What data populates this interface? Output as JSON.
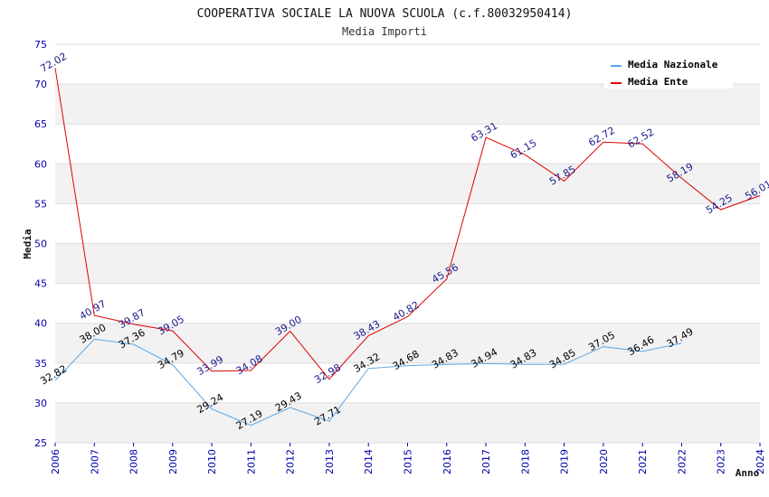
{
  "chart_data": {
    "type": "line",
    "title": "COOPERATIVA SOCIALE LA NUOVA SCUOLA (c.f.80032950414)",
    "subtitle": "Media Importi",
    "xlabel": "Anno",
    "ylabel": "Media",
    "ylim": [
      25,
      75
    ],
    "yticks": [
      25,
      30,
      35,
      40,
      45,
      50,
      55,
      60,
      65,
      70,
      75
    ],
    "x": [
      "2006",
      "2007",
      "2008",
      "2009",
      "2010",
      "2011",
      "2012",
      "2013",
      "2014",
      "2015",
      "2016",
      "2017",
      "2018",
      "2019",
      "2020",
      "2021",
      "2022",
      "2023",
      "2024"
    ],
    "grid": true,
    "legend_position": "top-right",
    "series": [
      {
        "name": "Media Nazionale",
        "color": "#5aa7e6",
        "values": [
          32.82,
          38.0,
          37.36,
          34.79,
          29.24,
          27.19,
          29.43,
          27.71,
          34.32,
          34.68,
          34.83,
          34.94,
          34.83,
          34.85,
          37.05,
          36.46,
          37.49,
          null,
          null
        ],
        "labels": [
          "32.82",
          "38.00",
          "37.36",
          "34.79",
          "29.24",
          "27.19",
          "29.43",
          "27.71",
          "34.32",
          "34.68",
          "34.83",
          "34.94",
          "34.83",
          "34.85",
          "37.05",
          "36.46",
          "37.49",
          "",
          ""
        ]
      },
      {
        "name": "Media Ente",
        "color": "#e00000",
        "values": [
          72.02,
          40.97,
          39.87,
          39.05,
          33.99,
          34.08,
          39.0,
          32.98,
          38.43,
          40.82,
          45.56,
          63.31,
          61.15,
          57.85,
          62.72,
          62.52,
          58.19,
          54.25,
          56.01
        ],
        "labels": [
          "72.02",
          "40.97",
          "39.87",
          "39.05",
          "33.99",
          "34.08",
          "39.00",
          "32.98",
          "38.43",
          "40.82",
          "45.56",
          "63.31",
          "61.15",
          "57.85",
          "62.72",
          "62.52",
          "58.19",
          "54.25",
          "56.01"
        ]
      }
    ]
  }
}
